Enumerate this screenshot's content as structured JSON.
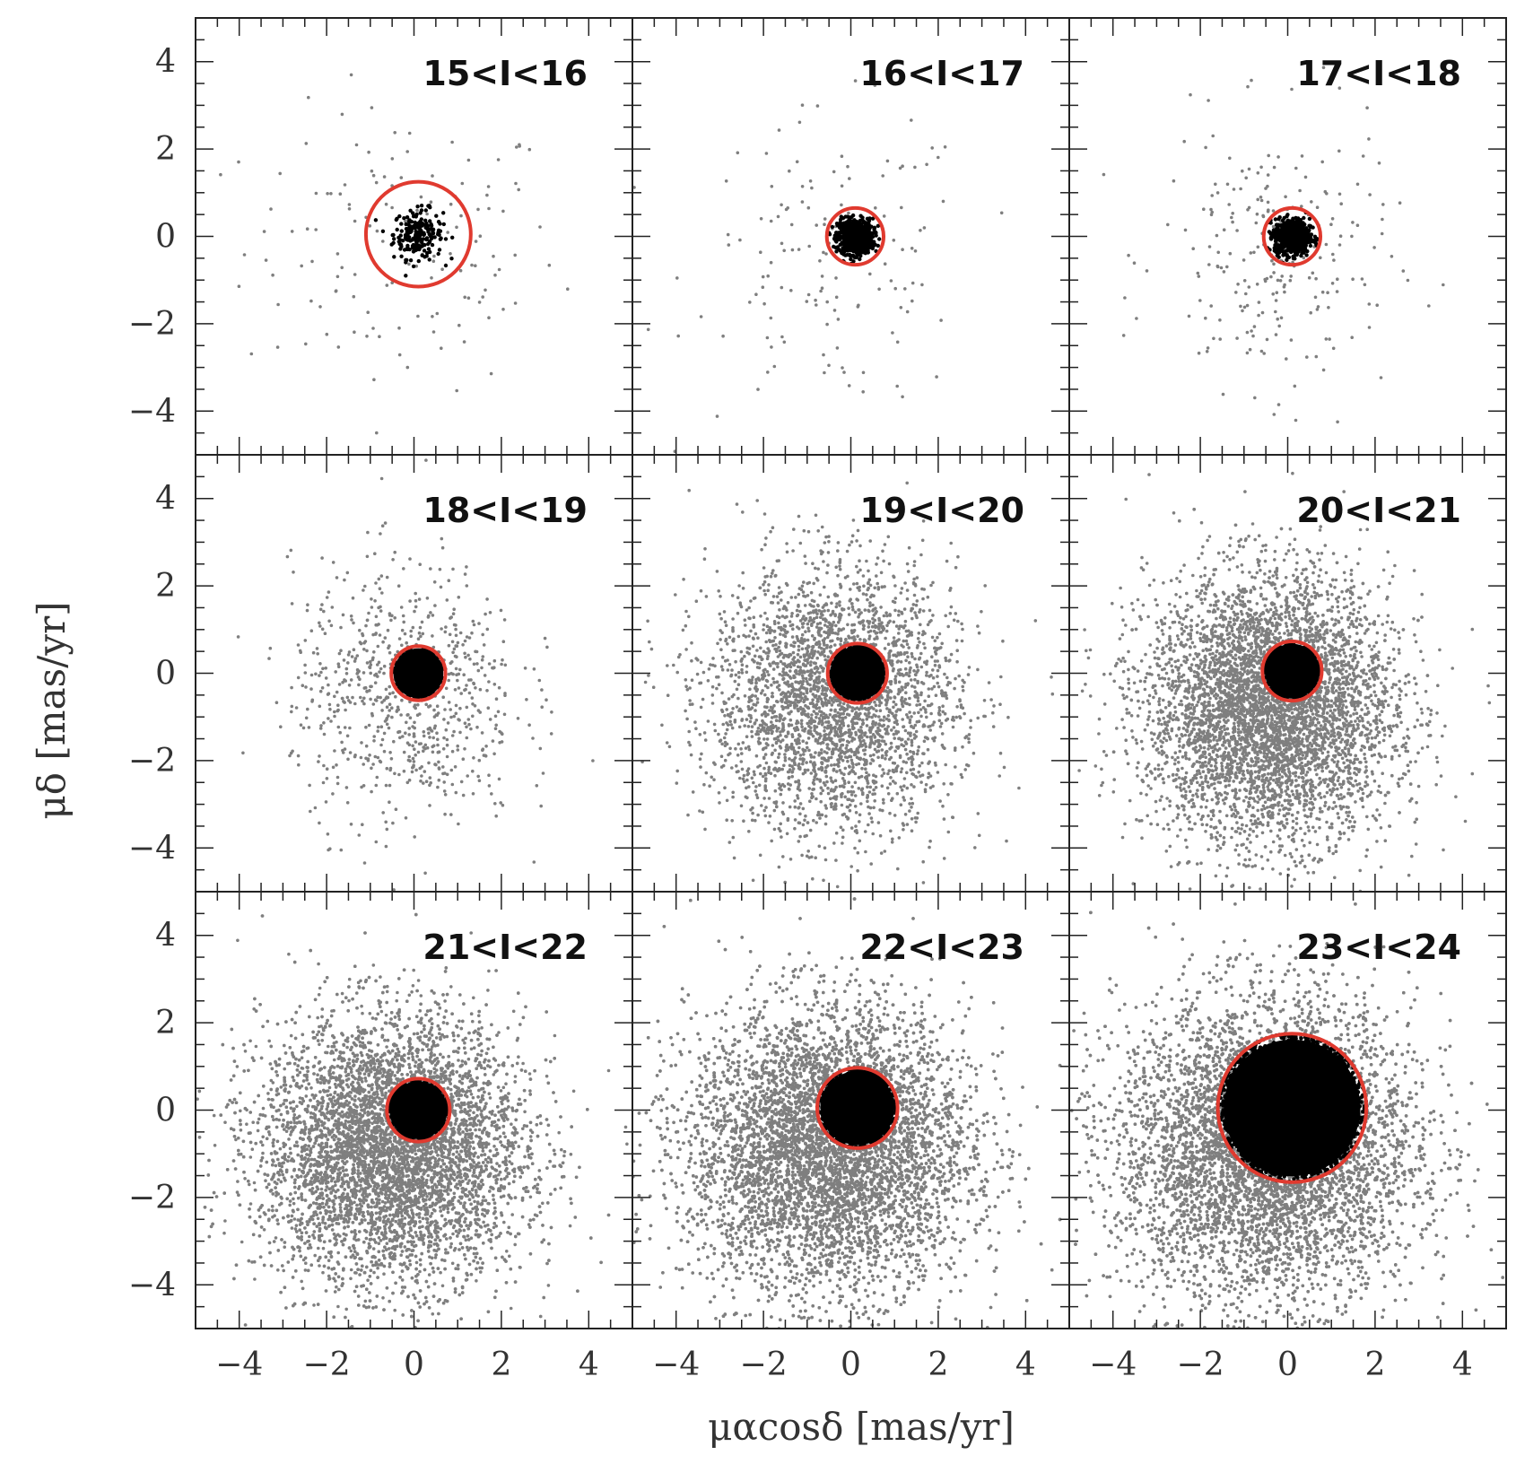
{
  "figure": {
    "x_axis_label": "μαcosδ [mas/yr]",
    "y_axis_label": "μδ [mas/yr]"
  },
  "chart_data": {
    "type": "scatter",
    "layout": "3x3 panels, shared axes",
    "xlim": [
      -5,
      5
    ],
    "ylim": [
      -5,
      5
    ],
    "x_ticks": [
      -4,
      -2,
      0,
      2,
      4
    ],
    "y_ticks": [
      -4,
      -2,
      0,
      2,
      4
    ],
    "x_tick_labels": [
      "−4",
      "−2",
      "0",
      "2",
      "4"
    ],
    "y_tick_labels": [
      "−4",
      "−2",
      "0",
      "2",
      "4"
    ],
    "xlabel": "μαcosδ [mas/yr]",
    "ylabel": "μδ [mas/yr]",
    "colors": {
      "field": "#7f7f7f",
      "members": "#000000",
      "circle": "#e03a2f"
    },
    "panels": [
      {
        "title": "15<I<16",
        "circle_center": [
          0.1,
          0.05
        ],
        "circle_radius": 1.2,
        "field_count": 140,
        "field_spread": [
          1.8,
          1.6
        ],
        "field_center": [
          -0.3,
          -0.3
        ],
        "member_count": 220,
        "member_spread": 0.28
      },
      {
        "title": "16<I<17",
        "circle_center": [
          0.1,
          0.0
        ],
        "circle_radius": 0.65,
        "field_count": 140,
        "field_spread": [
          1.6,
          1.7
        ],
        "field_center": [
          -0.4,
          -0.6
        ],
        "member_count": 700,
        "member_spread": 0.2
      },
      {
        "title": "17<I<18",
        "circle_center": [
          0.1,
          0.0
        ],
        "circle_radius": 0.65,
        "field_count": 240,
        "field_spread": [
          1.3,
          1.5
        ],
        "field_center": [
          -0.3,
          -0.5
        ],
        "member_count": 700,
        "member_spread": 0.2
      },
      {
        "title": "18<I<19",
        "circle_center": [
          0.1,
          0.0
        ],
        "circle_radius": 0.62,
        "field_count": 800,
        "field_spread": [
          1.3,
          1.5
        ],
        "field_center": [
          -0.2,
          -0.5
        ],
        "member_count": 900,
        "member_spread": 0.25
      },
      {
        "title": "19<I<20",
        "circle_center": [
          0.15,
          0.0
        ],
        "circle_radius": 0.68,
        "field_count": 3200,
        "field_spread": [
          1.4,
          1.5
        ],
        "field_center": [
          -0.4,
          -0.6
        ],
        "member_count": 1400,
        "member_spread": 0.3
      },
      {
        "title": "20<I<21",
        "circle_center": [
          0.1,
          0.05
        ],
        "circle_radius": 0.68,
        "field_count": 6000,
        "field_spread": [
          1.4,
          1.5
        ],
        "field_center": [
          -0.4,
          -0.8
        ],
        "member_count": 1500,
        "member_spread": 0.3
      },
      {
        "title": "21<I<22",
        "circle_center": [
          0.1,
          0.0
        ],
        "circle_radius": 0.72,
        "field_count": 9000,
        "field_spread": [
          1.5,
          1.5
        ],
        "field_center": [
          -0.5,
          -0.9
        ],
        "member_count": 1600,
        "member_spread": 0.32
      },
      {
        "title": "22<I<23",
        "circle_center": [
          0.15,
          0.05
        ],
        "circle_radius": 0.92,
        "field_count": 12000,
        "field_spread": [
          1.6,
          1.6
        ],
        "field_center": [
          -0.5,
          -0.9
        ],
        "member_count": 2200,
        "member_spread": 0.42
      },
      {
        "title": "23<I<24",
        "circle_center": [
          0.1,
          0.05
        ],
        "circle_radius": 1.7,
        "field_count": 12000,
        "field_spread": [
          1.7,
          1.7
        ],
        "field_center": [
          -0.5,
          -0.9
        ],
        "member_count": 7000,
        "member_spread": 0.8
      }
    ]
  }
}
